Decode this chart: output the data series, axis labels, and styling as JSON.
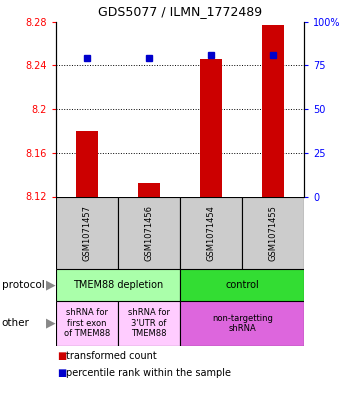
{
  "title": "GDS5077 / ILMN_1772489",
  "samples": [
    "GSM1071457",
    "GSM1071456",
    "GSM1071454",
    "GSM1071455"
  ],
  "transformed_count": [
    8.18,
    8.132,
    8.246,
    8.277
  ],
  "percentile_rank": [
    79,
    79,
    81,
    81
  ],
  "ylim_left": [
    8.12,
    8.28
  ],
  "ylim_right": [
    0,
    100
  ],
  "yticks_left": [
    8.12,
    8.16,
    8.2,
    8.24,
    8.28
  ],
  "yticks_right": [
    0,
    25,
    50,
    75,
    100
  ],
  "ytick_labels_left": [
    "8.12",
    "8.16",
    "8.2",
    "8.24",
    "8.28"
  ],
  "ytick_labels_right": [
    "0",
    "25",
    "50",
    "75",
    "100%"
  ],
  "bar_color": "#cc0000",
  "dot_color": "#0000cc",
  "protocol_row": [
    {
      "label": "TMEM88 depletion",
      "span": [
        0,
        2
      ],
      "color": "#aaffaa"
    },
    {
      "label": "control",
      "span": [
        2,
        4
      ],
      "color": "#33dd33"
    }
  ],
  "other_row": [
    {
      "label": "shRNA for\nfirst exon\nof TMEM88",
      "span": [
        0,
        1
      ],
      "color": "#ffccff"
    },
    {
      "label": "shRNA for\n3'UTR of\nTMEM88",
      "span": [
        1,
        2
      ],
      "color": "#ffccff"
    },
    {
      "label": "non-targetting\nshRNA",
      "span": [
        2,
        4
      ],
      "color": "#dd66dd"
    }
  ],
  "legend_items": [
    {
      "color": "#cc0000",
      "label": "transformed count"
    },
    {
      "color": "#0000cc",
      "label": "percentile rank within the sample"
    }
  ],
  "protocol_label": "protocol",
  "other_label": "other",
  "sample_bg": "#cccccc",
  "bar_width": 0.35
}
